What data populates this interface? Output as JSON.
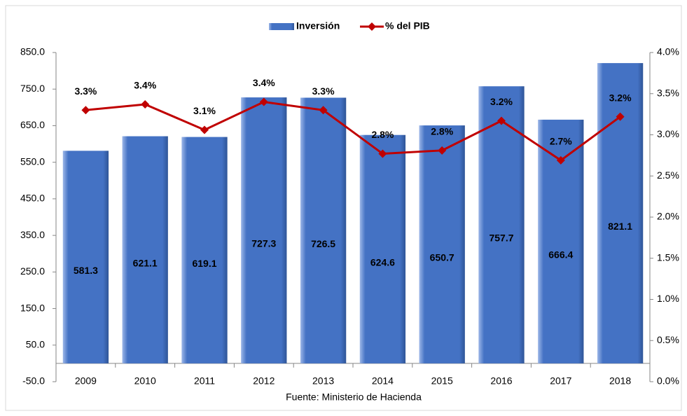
{
  "chart_data": {
    "type": "bar",
    "legend": "top",
    "categories": [
      "2009",
      "2010",
      "2011",
      "2012",
      "2013",
      "2014",
      "2015",
      "2016",
      "2017",
      "2018"
    ],
    "series": [
      {
        "name": "Inversión",
        "type": "bar",
        "color": "#4472c4",
        "values": [
          581.3,
          621.1,
          619.1,
          727.3,
          726.5,
          624.6,
          650.7,
          757.7,
          666.4,
          821.1
        ]
      },
      {
        "name": "% del PIB",
        "type": "line",
        "axis": "y2",
        "color": "#c00000",
        "values": [
          3.3,
          3.37,
          3.06,
          3.4,
          3.3,
          2.77,
          2.81,
          3.17,
          2.69,
          3.22
        ],
        "value_labels": [
          "3.3%",
          "3.4%",
          "3.1%",
          "3.4%",
          "3.3%",
          "2.8%",
          "2.8%",
          "3.2%",
          "2.7%",
          "3.2%"
        ]
      }
    ],
    "ylim": [
      -50,
      850
    ],
    "yticks": [
      {
        "value": -50,
        "label": "-50.0"
      },
      {
        "value": 50,
        "label": "50.0"
      },
      {
        "value": 150,
        "label": "150.0"
      },
      {
        "value": 250,
        "label": "250.0"
      },
      {
        "value": 350,
        "label": "350.0"
      },
      {
        "value": 450,
        "label": "450.0"
      },
      {
        "value": 550,
        "label": "550.0"
      },
      {
        "value": 650,
        "label": "650.0"
      },
      {
        "value": 750,
        "label": "750.0"
      },
      {
        "value": 850,
        "label": "850.0"
      }
    ],
    "y2lim": [
      0,
      4
    ],
    "y2ticks": [
      {
        "value": 0,
        "label": "0.0%"
      },
      {
        "value": 0.5,
        "label": "0.5%"
      },
      {
        "value": 1,
        "label": "1.0%"
      },
      {
        "value": 1.5,
        "label": "1.5%"
      },
      {
        "value": 2,
        "label": "2.0%"
      },
      {
        "value": 2.5,
        "label": "2.5%"
      },
      {
        "value": 3,
        "label": "3.0%"
      },
      {
        "value": 3.5,
        "label": "3.5%"
      },
      {
        "value": 4,
        "label": "4.0%"
      }
    ],
    "source": "Fuente: Ministerio de Hacienda"
  }
}
